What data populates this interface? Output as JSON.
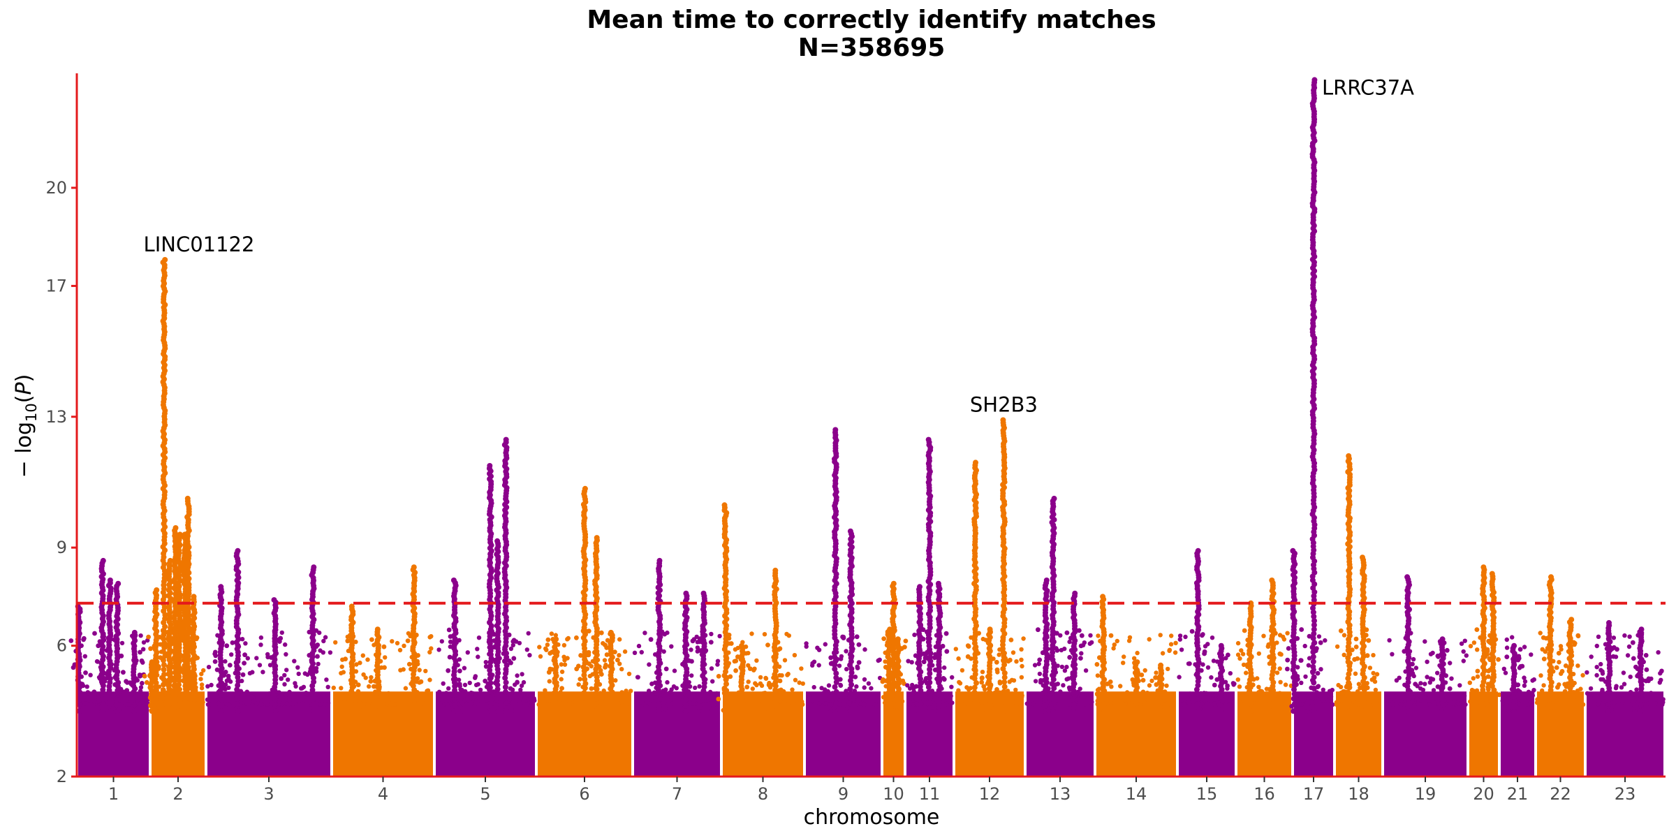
{
  "chart_data": {
    "type": "scatter",
    "subtype": "manhattan",
    "title": "Mean time to correctly identify matches",
    "subtitle": "N=358695",
    "xlabel": "chromosome",
    "ylabel_parts": [
      "− log",
      "10",
      "(",
      "P",
      ")"
    ],
    "ylim": [
      2,
      23.5
    ],
    "yticks": [
      2,
      6,
      9,
      13,
      17,
      20
    ],
    "significance_line": {
      "value": 7.3,
      "style": "dashed",
      "color": "#e41a1c"
    },
    "colors": {
      "odd": "#8b008b",
      "even": "#ef7600",
      "axis": "#e41a1c"
    },
    "chromosomes": [
      {
        "label": "1",
        "peaks": [
          [
            0.03,
            7.2
          ],
          [
            0.35,
            8.6
          ],
          [
            0.45,
            8.0
          ],
          [
            0.55,
            7.9
          ],
          [
            0.78,
            6.4
          ]
        ]
      },
      {
        "label": "2",
        "peaks": [
          [
            0.02,
            5.5
          ],
          [
            0.1,
            7.7
          ],
          [
            0.25,
            17.8
          ],
          [
            0.35,
            8.6
          ],
          [
            0.45,
            9.6
          ],
          [
            0.52,
            9.4
          ],
          [
            0.62,
            9.4
          ],
          [
            0.68,
            10.5
          ],
          [
            0.78,
            7.5
          ]
        ]
      },
      {
        "label": "3",
        "peaks": [
          [
            0.12,
            7.8
          ],
          [
            0.25,
            8.9
          ],
          [
            0.55,
            7.4
          ],
          [
            0.85,
            8.4
          ]
        ]
      },
      {
        "label": "4",
        "peaks": [
          [
            0.2,
            7.2
          ],
          [
            0.45,
            6.5
          ],
          [
            0.8,
            8.4
          ]
        ]
      },
      {
        "label": "5",
        "peaks": [
          [
            0.2,
            8.0
          ],
          [
            0.55,
            11.5
          ],
          [
            0.62,
            9.2
          ],
          [
            0.7,
            12.3
          ]
        ]
      },
      {
        "label": "6",
        "peaks": [
          [
            0.2,
            6.2
          ],
          [
            0.5,
            10.8
          ],
          [
            0.62,
            9.3
          ],
          [
            0.78,
            6.4
          ]
        ]
      },
      {
        "label": "7",
        "peaks": [
          [
            0.3,
            8.6
          ],
          [
            0.6,
            7.6
          ],
          [
            0.8,
            7.6
          ]
        ]
      },
      {
        "label": "8",
        "peaks": [
          [
            0.05,
            10.3
          ],
          [
            0.25,
            6.0
          ],
          [
            0.65,
            8.3
          ]
        ]
      },
      {
        "label": "9",
        "peaks": [
          [
            0.4,
            12.6
          ],
          [
            0.6,
            9.5
          ]
        ]
      },
      {
        "label": "10",
        "peaks": [
          [
            0.3,
            6.5
          ],
          [
            0.5,
            7.9
          ],
          [
            0.7,
            6.2
          ]
        ]
      },
      {
        "label": "11",
        "peaks": [
          [
            0.3,
            7.8
          ],
          [
            0.5,
            12.3
          ],
          [
            0.7,
            7.9
          ]
        ]
      },
      {
        "label": "12",
        "peaks": [
          [
            0.3,
            11.6
          ],
          [
            0.5,
            6.5
          ],
          [
            0.7,
            12.9
          ]
        ]
      },
      {
        "label": "13",
        "peaks": [
          [
            0.3,
            8.0
          ],
          [
            0.4,
            10.5
          ],
          [
            0.7,
            7.6
          ]
        ]
      },
      {
        "label": "14",
        "peaks": [
          [
            0.1,
            7.5
          ],
          [
            0.5,
            5.5
          ],
          [
            0.8,
            5.4
          ]
        ]
      },
      {
        "label": "15",
        "peaks": [
          [
            0.35,
            8.9
          ],
          [
            0.75,
            6.0
          ]
        ]
      },
      {
        "label": "16",
        "peaks": [
          [
            0.25,
            7.3
          ],
          [
            0.65,
            8.0
          ]
        ]
      },
      {
        "label": "17",
        "peaks": [
          [
            0.03,
            8.9
          ],
          [
            0.5,
            23.3
          ]
        ]
      },
      {
        "label": "18",
        "peaks": [
          [
            0.3,
            11.8
          ],
          [
            0.6,
            8.7
          ]
        ]
      },
      {
        "label": "19",
        "peaks": [
          [
            0.3,
            8.1
          ],
          [
            0.7,
            6.2
          ]
        ]
      },
      {
        "label": "20",
        "peaks": [
          [
            0.5,
            8.4
          ],
          [
            0.8,
            8.2
          ]
        ]
      },
      {
        "label": "21",
        "peaks": [
          [
            0.4,
            6.0
          ]
        ]
      },
      {
        "label": "22",
        "peaks": [
          [
            0.3,
            8.1
          ],
          [
            0.7,
            6.8
          ]
        ]
      },
      {
        "label": "23",
        "peaks": [
          [
            0.3,
            6.7
          ],
          [
            0.7,
            6.5
          ]
        ]
      }
    ],
    "annotations": [
      {
        "text": "LINC01122",
        "chromosome": "2",
        "position": 0.25,
        "y": 17.8
      },
      {
        "text": "SH2B3",
        "chromosome": "12",
        "position": 0.7,
        "y": 12.9
      },
      {
        "text": "LRRC37A",
        "chromosome": "17",
        "position": 0.5,
        "y": 23.3
      }
    ]
  }
}
